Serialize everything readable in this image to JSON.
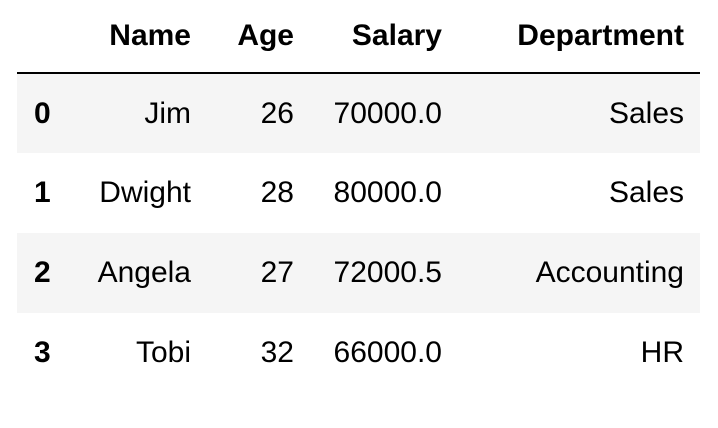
{
  "table": {
    "columns": [
      "Name",
      "Age",
      "Salary",
      "Department"
    ],
    "rows": [
      {
        "index": "0",
        "cells": [
          "Jim",
          "26",
          "70000.0",
          "Sales"
        ]
      },
      {
        "index": "1",
        "cells": [
          "Dwight",
          "28",
          "80000.0",
          "Sales"
        ]
      },
      {
        "index": "2",
        "cells": [
          "Angela",
          "27",
          "72000.5",
          "Accounting"
        ]
      },
      {
        "index": "3",
        "cells": [
          "Tobi",
          "32",
          "66000.0",
          "HR"
        ]
      }
    ]
  },
  "colors": {
    "stripe": "#f5f5f5",
    "header_rule": "#000000",
    "text": "#000000",
    "background": "#ffffff"
  }
}
